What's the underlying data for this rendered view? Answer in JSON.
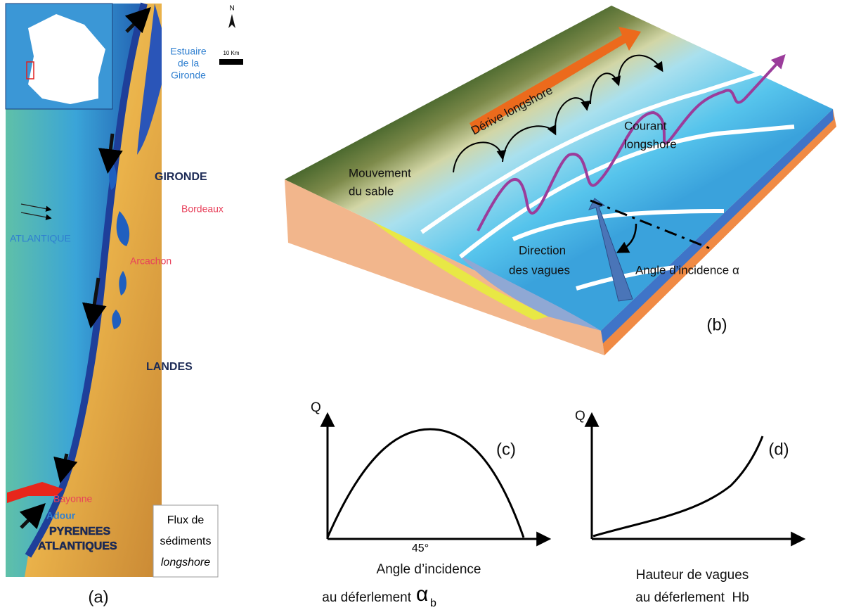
{
  "panel_a": {
    "label": "(a)",
    "north": "N",
    "scale": "10 Km",
    "estuary": [
      "Estuaire",
      "de la",
      "Gironde"
    ],
    "region_gironde": "GIRONDE",
    "bordeaux": "Bordeaux",
    "ocean": "ATLANTIQUE",
    "arcachon": "Arcachon",
    "region_landes": "LANDES",
    "bayonne": "Bayonne",
    "adour": "Adour",
    "region_pyrenees": [
      "PYRENEES",
      "ATLANTIQUES"
    ],
    "legend": [
      "Flux de",
      "sédiments",
      "longshore"
    ]
  },
  "panel_b": {
    "label": "(b)",
    "drift": "Dérive longshore",
    "sand": [
      "Mouvement",
      "du sable"
    ],
    "current": [
      "Courant",
      "longshore"
    ],
    "waves": [
      "Direction",
      "des vagues"
    ],
    "angle": "Angle d’incidence α"
  },
  "panel_c": {
    "label": "(c)",
    "y_axis": "Q",
    "peak_tick": "45°",
    "x_axis": [
      "Angle d’incidence",
      "au déferlement"
    ],
    "symbol": "α",
    "subscript": "b"
  },
  "panel_d": {
    "label": "(d)",
    "y_axis": "Q",
    "x_axis": [
      "Hauteur de vagues",
      "au déferlement  Hb"
    ]
  }
}
